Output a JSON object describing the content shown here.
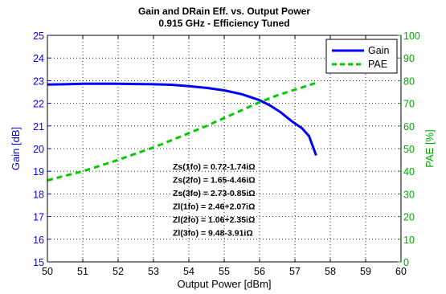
{
  "chart_data": {
    "type": "line",
    "title": "Gain and DRain Eff. vs. Output Power",
    "subtitle": "0.915 GHz - Efficiency Tuned",
    "xlabel": "Output Power [dBm]",
    "ylabel_left": "Gain [dB]",
    "ylabel_right": "PAE [%]",
    "xlim": [
      50,
      60
    ],
    "ylim_left": [
      15,
      25
    ],
    "ylim_right": [
      0,
      100
    ],
    "xticks": [
      50,
      51,
      52,
      53,
      54,
      55,
      56,
      57,
      58,
      59,
      60
    ],
    "yticks_left": [
      15,
      16,
      17,
      18,
      19,
      20,
      21,
      22,
      23,
      24,
      25
    ],
    "yticks_right": [
      0,
      10,
      20,
      30,
      40,
      50,
      60,
      70,
      80,
      90,
      100
    ],
    "grid": true,
    "legend_position": "top-right",
    "series": [
      {
        "name": "Gain",
        "axis": "left",
        "color": "#0000ff",
        "style": "solid",
        "x": [
          50.0,
          50.5,
          51.0,
          51.5,
          52.0,
          52.5,
          53.0,
          53.5,
          54.0,
          54.5,
          55.0,
          55.5,
          56.0,
          56.3,
          56.6,
          56.9,
          57.2,
          57.4,
          57.6
        ],
        "y": [
          22.83,
          22.84,
          22.86,
          22.86,
          22.86,
          22.85,
          22.84,
          22.82,
          22.76,
          22.68,
          22.57,
          22.4,
          22.14,
          21.9,
          21.6,
          21.22,
          20.9,
          20.55,
          19.7
        ]
      },
      {
        "name": "PAE",
        "axis": "right",
        "color": "#00cc00",
        "style": "dashed",
        "x": [
          50.0,
          50.5,
          51.0,
          51.5,
          52.0,
          52.5,
          53.0,
          53.5,
          54.0,
          54.5,
          55.0,
          55.5,
          56.0,
          56.5,
          57.0,
          57.3,
          57.6
        ],
        "y": [
          36.0,
          38.0,
          40.0,
          42.5,
          45.0,
          47.8,
          50.5,
          53.6,
          56.8,
          60.0,
          63.5,
          67.0,
          70.5,
          73.5,
          76.0,
          77.5,
          79.0
        ]
      }
    ],
    "annotations": [
      "Zs(1fo) = 0.72-1.74iΩ",
      "Zs(2fo) = 1.65-4.46iΩ",
      "Zs(3fo) = 2.73-0.85iΩ",
      "Zl(1fo) = 2.46+2.07iΩ",
      "Zl(2fo) = 1.06+2.35iΩ",
      "Zl(3fo) = 9.48-3.91iΩ"
    ]
  }
}
